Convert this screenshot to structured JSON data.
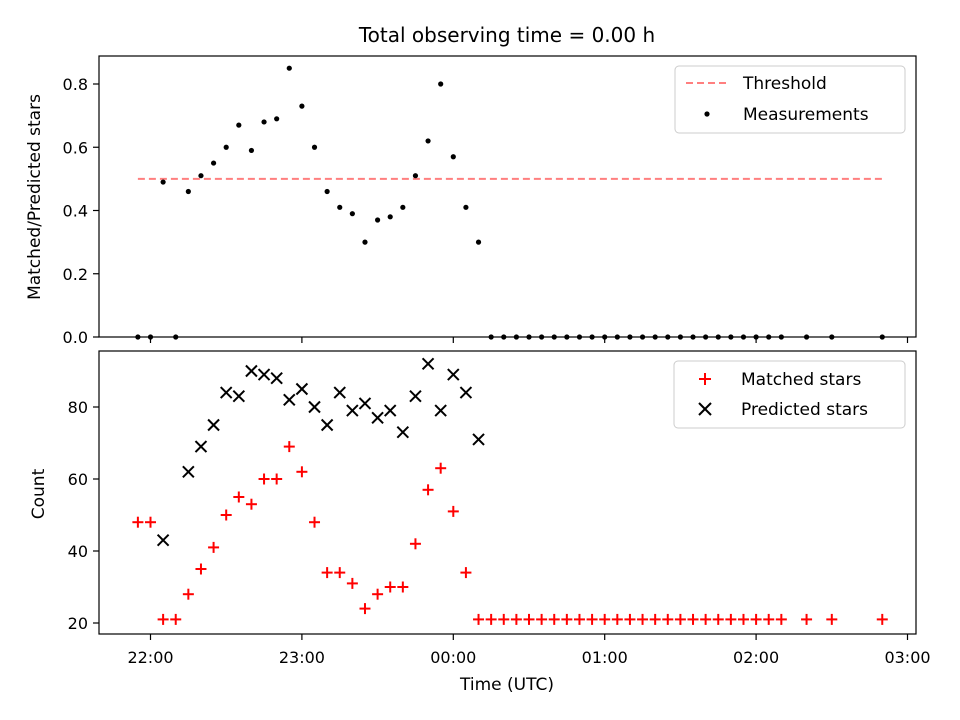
{
  "chart_data": [
    {
      "type": "scatter",
      "title": "Total observing time = 0.00 h",
      "xlabel": "",
      "ylabel": "Matched/Predicted stars",
      "ylim": [
        0,
        0.88
      ],
      "xlim": [
        "21:40",
        "03:02"
      ],
      "y_ticks": [
        "0.0",
        "0.2",
        "0.4",
        "0.6",
        "0.8"
      ],
      "legend_position": "top-right",
      "threshold": {
        "name": "Threshold",
        "value": 0.5,
        "x_range": [
          "21:55",
          "02:50"
        ],
        "color": "#ff7f7f",
        "style": "dashed"
      },
      "series": [
        {
          "name": "Measurements",
          "color": "#000000",
          "marker": "dot",
          "x": [
            "21:55",
            "22:00",
            "22:05",
            "22:10",
            "22:15",
            "22:20",
            "22:25",
            "22:30",
            "22:35",
            "22:40",
            "22:45",
            "22:50",
            "22:55",
            "23:00",
            "23:05",
            "23:10",
            "23:15",
            "23:20",
            "23:25",
            "23:30",
            "23:35",
            "23:40",
            "23:45",
            "23:50",
            "23:55",
            "00:00",
            "00:05",
            "00:10",
            "00:15",
            "00:20",
            "00:25",
            "00:30",
            "00:35",
            "00:40",
            "00:45",
            "00:50",
            "00:55",
            "01:00",
            "01:05",
            "01:10",
            "01:15",
            "01:20",
            "01:25",
            "01:30",
            "01:35",
            "01:40",
            "01:45",
            "01:50",
            "01:55",
            "02:00",
            "02:05",
            "02:10",
            "02:20",
            "02:30",
            "02:50"
          ],
          "y": [
            0.0,
            0.0,
            0.49,
            0.0,
            0.46,
            0.51,
            0.55,
            0.6,
            0.67,
            0.59,
            0.68,
            0.69,
            0.85,
            0.73,
            0.6,
            0.46,
            0.41,
            0.39,
            0.3,
            0.37,
            0.38,
            0.41,
            0.51,
            0.62,
            0.8,
            0.57,
            0.41,
            0.3,
            0.0,
            0.0,
            0.0,
            0.0,
            0.0,
            0.0,
            0.0,
            0.0,
            0.0,
            0.0,
            0.0,
            0.0,
            0.0,
            0.0,
            0.0,
            0.0,
            0.0,
            0.0,
            0.0,
            0.0,
            0.0,
            0.0,
            0.0,
            0.0,
            0.0,
            0.0,
            0.0
          ]
        }
      ]
    },
    {
      "type": "scatter",
      "title": "",
      "xlabel": "Time (UTC)",
      "ylabel": "Count",
      "ylim": [
        17.5,
        95
      ],
      "xlim": [
        "21:40",
        "03:02"
      ],
      "y_ticks": [
        "20",
        "40",
        "60",
        "80"
      ],
      "x_ticks": [
        "22:00",
        "23:00",
        "00:00",
        "01:00",
        "02:00",
        "03:00"
      ],
      "legend_position": "top-right",
      "series": [
        {
          "name": "Matched stars",
          "color": "#ff0000",
          "marker": "plus",
          "x": [
            "21:55",
            "22:00",
            "22:05",
            "22:10",
            "22:15",
            "22:20",
            "22:25",
            "22:30",
            "22:35",
            "22:40",
            "22:45",
            "22:50",
            "22:55",
            "23:00",
            "23:05",
            "23:10",
            "23:15",
            "23:20",
            "23:25",
            "23:30",
            "23:35",
            "23:40",
            "23:45",
            "23:50",
            "23:55",
            "00:00",
            "00:05",
            "00:10",
            "00:15",
            "00:20",
            "00:25",
            "00:30",
            "00:35",
            "00:40",
            "00:45",
            "00:50",
            "00:55",
            "01:00",
            "01:05",
            "01:10",
            "01:15",
            "01:20",
            "01:25",
            "01:30",
            "01:35",
            "01:40",
            "01:45",
            "01:50",
            "01:55",
            "02:00",
            "02:05",
            "02:10",
            "02:20",
            "02:30",
            "02:50"
          ],
          "y": [
            48,
            48,
            21,
            21,
            28,
            35,
            41,
            50,
            55,
            53,
            60,
            60,
            69,
            62,
            48,
            34,
            34,
            31,
            24,
            28,
            30,
            30,
            42,
            57,
            63,
            51,
            34,
            21,
            21,
            21,
            21,
            21,
            21,
            21,
            21,
            21,
            21,
            21,
            21,
            21,
            21,
            21,
            21,
            21,
            21,
            21,
            21,
            21,
            21,
            21,
            21,
            21,
            21,
            21,
            21
          ]
        },
        {
          "name": "Predicted stars",
          "color": "#000000",
          "marker": "x",
          "x": [
            "22:05",
            "22:15",
            "22:20",
            "22:25",
            "22:30",
            "22:35",
            "22:40",
            "22:45",
            "22:50",
            "22:55",
            "23:00",
            "23:05",
            "23:10",
            "23:15",
            "23:20",
            "23:25",
            "23:30",
            "23:35",
            "23:40",
            "23:45",
            "23:50",
            "23:55",
            "00:00",
            "00:05",
            "00:10"
          ],
          "y": [
            43,
            62,
            69,
            75,
            84,
            83,
            90,
            89,
            88,
            82,
            85,
            80,
            75,
            84,
            79,
            81,
            77,
            79,
            73,
            83,
            92,
            79,
            89,
            84,
            71
          ]
        }
      ]
    }
  ]
}
